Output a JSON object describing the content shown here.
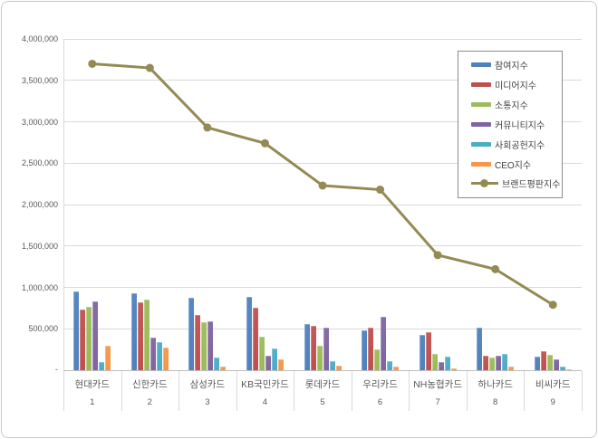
{
  "page": {
    "background": "#ffffff",
    "border_color": "#c9c9c9"
  },
  "colors": {
    "gridline": "#d9d9d9",
    "axis_line": "#bfbfbf",
    "axis_text": "#595959",
    "legend_border": "#8c8c8c",
    "legend_text": "#404040"
  },
  "chart_data": {
    "type": "combo",
    "title": "",
    "xlabel": "",
    "ylabel": "",
    "grid": true,
    "legend_position": "upper-right-inside",
    "ylim": [
      0,
      4000000
    ],
    "ytick_interval": 500000,
    "ytick_labels": [
      "4,000,000",
      "3,500,000",
      "3,000,000",
      "2,500,000",
      "2,000,000",
      "1,500,000",
      "1,000,000",
      "500,000"
    ],
    "zero_tick_label": "-",
    "categories": [
      "현대카드",
      "신한카드",
      "삼성카드",
      "KB국민카드",
      "롯데카드",
      "우리카드",
      "NH농협카드",
      "하나카드",
      "비씨카드"
    ],
    "category_numbers": [
      "1",
      "2",
      "3",
      "4",
      "5",
      "6",
      "7",
      "8",
      "9"
    ],
    "bar_series": [
      {
        "name": "참여지수",
        "color": "#4F81BD",
        "values": [
          950000,
          930000,
          870000,
          890000,
          560000,
          480000,
          430000,
          510000,
          160000
        ]
      },
      {
        "name": "미디어지수",
        "color": "#C0504D",
        "values": [
          730000,
          820000,
          670000,
          750000,
          535000,
          510000,
          460000,
          180000,
          230000
        ]
      },
      {
        "name": "소통지수",
        "color": "#9BBB59",
        "values": [
          770000,
          850000,
          575000,
          400000,
          300000,
          250000,
          200000,
          150000,
          185000
        ]
      },
      {
        "name": "커뮤니티지수",
        "color": "#8064A2",
        "values": [
          830000,
          390000,
          590000,
          180000,
          515000,
          640000,
          100000,
          170000,
          130000
        ]
      },
      {
        "name": "사회공헌지수",
        "color": "#4BACC6",
        "values": [
          100000,
          335000,
          155000,
          260000,
          110000,
          110000,
          165000,
          195000,
          40000
        ]
      },
      {
        "name": "CEO지수",
        "color": "#F79646",
        "values": [
          300000,
          270000,
          40000,
          135000,
          60000,
          40000,
          25000,
          45000,
          15000
        ]
      }
    ],
    "line_series": {
      "name": "브랜드평판지수",
      "color": "#948A54",
      "values": [
        3700000,
        3650000,
        2930000,
        2740000,
        2230000,
        2180000,
        1390000,
        1220000,
        790000
      ]
    }
  }
}
